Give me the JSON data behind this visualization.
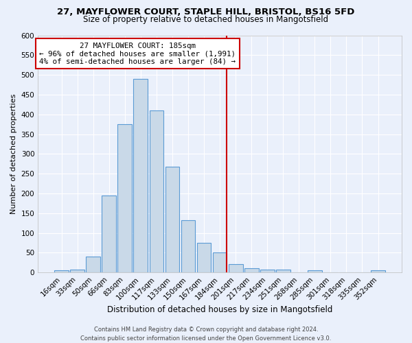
{
  "title1": "27, MAYFLOWER COURT, STAPLE HILL, BRISTOL, BS16 5FD",
  "title2": "Size of property relative to detached houses in Mangotsfield",
  "xlabel": "Distribution of detached houses by size in Mangotsfield",
  "ylabel": "Number of detached properties",
  "bin_labels": [
    "16sqm",
    "33sqm",
    "50sqm",
    "66sqm",
    "83sqm",
    "100sqm",
    "117sqm",
    "133sqm",
    "150sqm",
    "167sqm",
    "184sqm",
    "201sqm",
    "217sqm",
    "234sqm",
    "251sqm",
    "268sqm",
    "285sqm",
    "301sqm",
    "318sqm",
    "335sqm",
    "352sqm"
  ],
  "bar_values": [
    5,
    8,
    40,
    195,
    375,
    490,
    410,
    268,
    133,
    75,
    50,
    22,
    11,
    8,
    7,
    0,
    5,
    0,
    0,
    0,
    5
  ],
  "bar_color": "#c9d9e8",
  "bar_edge_color": "#5b9bd5",
  "vline_x": 10.42,
  "vline_color": "#cc0000",
  "ylim": [
    0,
    600
  ],
  "yticks": [
    0,
    50,
    100,
    150,
    200,
    250,
    300,
    350,
    400,
    450,
    500,
    550,
    600
  ],
  "annotation_title": "27 MAYFLOWER COURT: 185sqm",
  "annotation_line1": "← 96% of detached houses are smaller (1,991)",
  "annotation_line2": "4% of semi-detached houses are larger (84) →",
  "annotation_box_color": "#ffffff",
  "annotation_box_edge": "#cc0000",
  "footer": "Contains HM Land Registry data © Crown copyright and database right 2024.\nContains public sector information licensed under the Open Government Licence v3.0.",
  "background_color": "#eaf0fb",
  "grid_color": "#ffffff",
  "title1_fontsize": 9.5,
  "title2_fontsize": 8.5
}
